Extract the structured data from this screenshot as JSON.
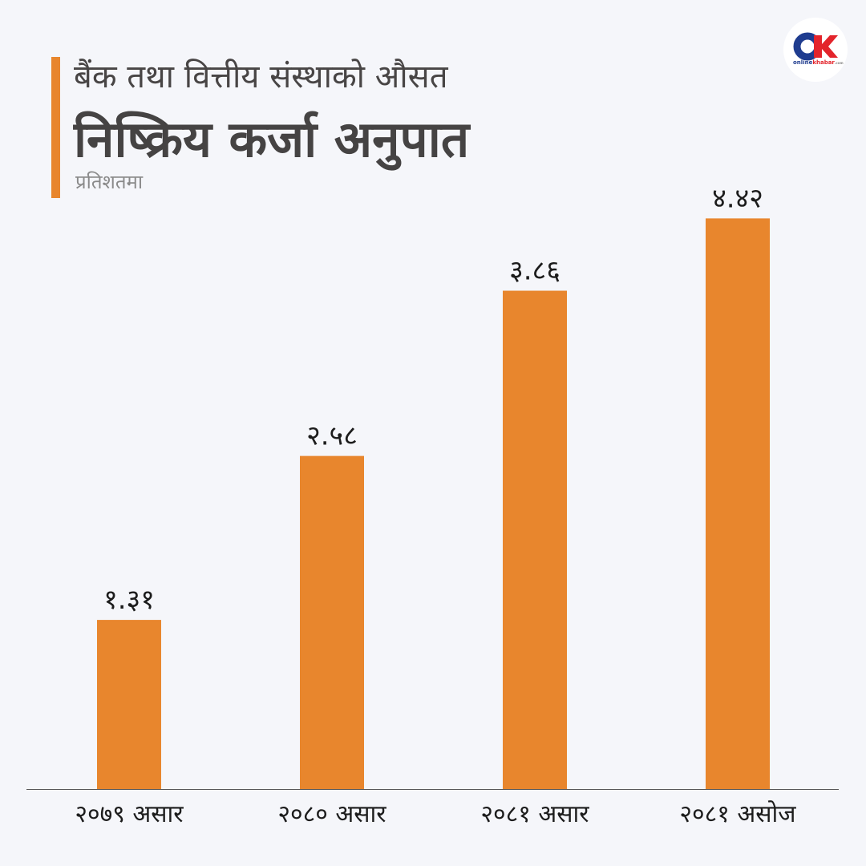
{
  "header": {
    "title_line1": "बैंक तथा वित्तीय संस्थाको औसत",
    "title_line2": "निष्क्रिय कर्जा अनुपात",
    "subtitle": "प्रतिशतमा"
  },
  "logo": {
    "brand_a": "online",
    "brand_b": "khabar",
    "suffix": ".com"
  },
  "colors": {
    "bar": "#e8862d",
    "text": "#464444",
    "background": "#f5f6fa"
  },
  "chart_data": {
    "type": "bar",
    "title": "बैंक तथा वित्तीय संस्थाको औसत निष्क्रिय कर्जा अनुपात",
    "subtitle": "प्रतिशतमा",
    "xlabel": "",
    "ylabel": "",
    "categories": [
      "२०७९ असार",
      "२०८० असार",
      "२०८१ असार",
      "२०८१ असोज"
    ],
    "values": [
      1.31,
      2.58,
      3.86,
      4.42
    ],
    "value_labels": [
      "१.३१",
      "२.५८",
      "३.८६",
      "४.४२"
    ],
    "ylim": [
      0,
      5
    ],
    "grid": false,
    "legend": "none"
  }
}
